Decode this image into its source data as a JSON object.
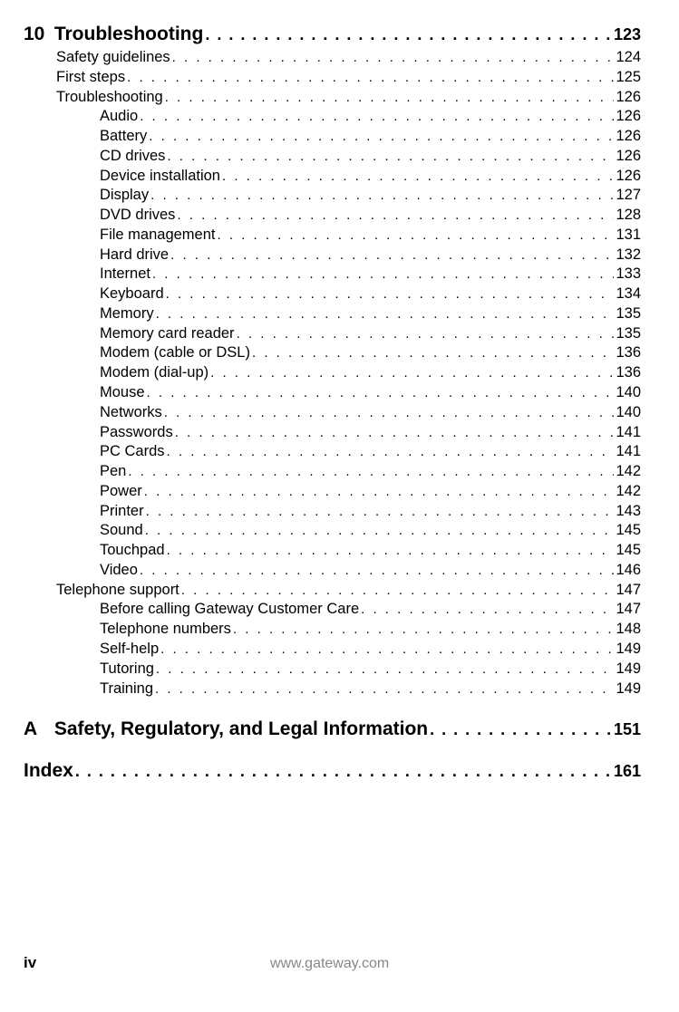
{
  "entries": [
    {
      "level": 0,
      "num": "10",
      "label": "Troubleshooting",
      "page": "123",
      "gap_before": false
    },
    {
      "level": 1,
      "label": "Safety guidelines",
      "page": "124"
    },
    {
      "level": 1,
      "label": "First steps",
      "page": "125"
    },
    {
      "level": 1,
      "label": "Troubleshooting",
      "page": "126"
    },
    {
      "level": 2,
      "label": "Audio",
      "page": "126"
    },
    {
      "level": 2,
      "label": "Battery",
      "page": "126"
    },
    {
      "level": 2,
      "label": "CD drives",
      "page": "126"
    },
    {
      "level": 2,
      "label": "Device installation",
      "page": "126"
    },
    {
      "level": 2,
      "label": "Display",
      "page": "127"
    },
    {
      "level": 2,
      "label": "DVD drives",
      "page": "128"
    },
    {
      "level": 2,
      "label": "File management",
      "page": "131"
    },
    {
      "level": 2,
      "label": "Hard drive",
      "page": "132"
    },
    {
      "level": 2,
      "label": "Internet",
      "page": "133"
    },
    {
      "level": 2,
      "label": "Keyboard",
      "page": "134"
    },
    {
      "level": 2,
      "label": "Memory",
      "page": "135"
    },
    {
      "level": 2,
      "label": "Memory card reader",
      "page": "135"
    },
    {
      "level": 2,
      "label": "Modem (cable or DSL)",
      "page": "136"
    },
    {
      "level": 2,
      "label": "Modem (dial-up)",
      "page": "136"
    },
    {
      "level": 2,
      "label": "Mouse",
      "page": "140"
    },
    {
      "level": 2,
      "label": "Networks",
      "page": "140"
    },
    {
      "level": 2,
      "label": "Passwords",
      "page": "141"
    },
    {
      "level": 2,
      "label": "PC Cards",
      "page": "141"
    },
    {
      "level": 2,
      "label": "Pen",
      "page": "142"
    },
    {
      "level": 2,
      "label": "Power",
      "page": "142"
    },
    {
      "level": 2,
      "label": "Printer",
      "page": "143"
    },
    {
      "level": 2,
      "label": "Sound",
      "page": "145"
    },
    {
      "level": 2,
      "label": "Touchpad",
      "page": "145"
    },
    {
      "level": 2,
      "label": "Video",
      "page": "146"
    },
    {
      "level": 1,
      "label": "Telephone support",
      "page": "147"
    },
    {
      "level": 2,
      "label": "Before calling Gateway Customer Care",
      "page": "147"
    },
    {
      "level": 2,
      "label": "Telephone numbers",
      "page": "148"
    },
    {
      "level": 2,
      "label": "Self-help",
      "page": "149"
    },
    {
      "level": 2,
      "label": "Tutoring",
      "page": "149"
    },
    {
      "level": 2,
      "label": "Training",
      "page": "149"
    },
    {
      "level": 0,
      "num": "A",
      "label": "Safety, Regulatory, and Legal Information",
      "page": "151",
      "gap_before": true
    },
    {
      "level": 0,
      "num": "",
      "label": "Index",
      "page": "161",
      "gap_before": true
    }
  ],
  "footer": {
    "page_num": "iv",
    "url": "www.gateway.com"
  },
  "dots": ". . . . . . . . . . . . . . . . . . . . . . . . . . . . . . . . . . . . . . . . . . . . . . . . . . . . . . . . . . . . . . . . . . . . . . . . . . . . . . . . . . . . . . . . . . . . . . . . . . . . . . . . . . . . . . . . . . . . . . . . . . . . . . . . . . . . . . . . . . . . . ."
}
